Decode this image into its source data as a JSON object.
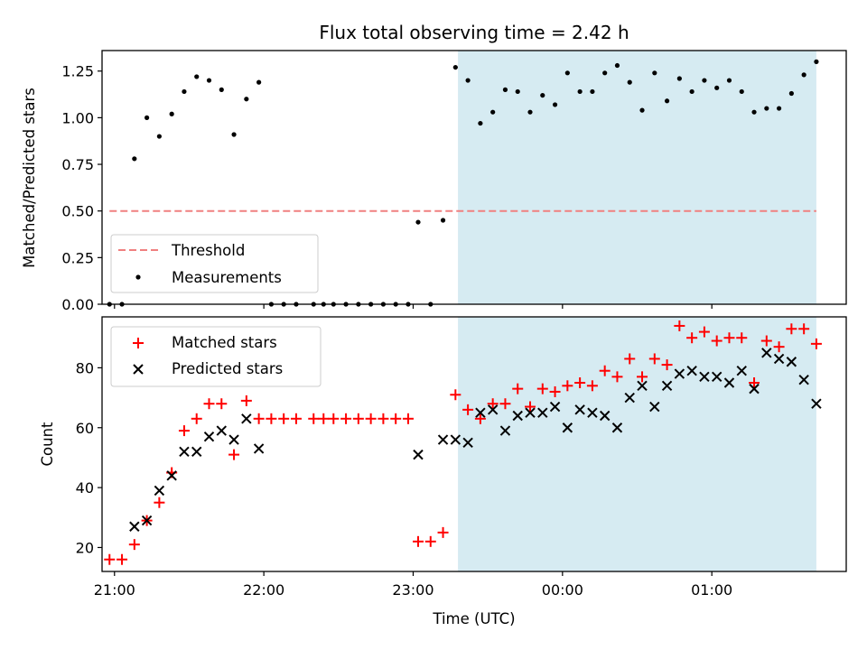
{
  "chart_data": [
    {
      "type": "scatter",
      "title": "Flux total observing time = 2.42 h",
      "xlabel": "",
      "ylabel": "Matched/Predicted stars",
      "ylim": [
        0,
        1.36
      ],
      "yticks": [
        "0.00",
        "0.25",
        "0.50",
        "0.75",
        "1.00",
        "1.25"
      ],
      "xlim": [
        "20:55",
        "01:54"
      ],
      "shaded_region": {
        "from": "23:18",
        "to": "01:42",
        "color": "#add8e6"
      },
      "threshold": {
        "name": "Threshold",
        "value": 0.5,
        "from": "20:58",
        "to": "01:42",
        "color": "#f08080"
      },
      "legend": {
        "location": "lower-left",
        "entries": [
          "Threshold",
          "Measurements"
        ]
      },
      "series": [
        {
          "name": "Measurements",
          "marker": "dot",
          "color": "#000000",
          "points": [
            [
              "20:58",
              0.0
            ],
            [
              "21:03",
              0.0
            ],
            [
              "21:08",
              0.78
            ],
            [
              "21:13",
              1.0
            ],
            [
              "21:18",
              0.9
            ],
            [
              "21:23",
              1.02
            ],
            [
              "21:28",
              1.14
            ],
            [
              "21:33",
              1.22
            ],
            [
              "21:38",
              1.2
            ],
            [
              "21:43",
              1.15
            ],
            [
              "21:48",
              0.91
            ],
            [
              "21:53",
              1.1
            ],
            [
              "21:58",
              1.19
            ],
            [
              "22:03",
              0.0
            ],
            [
              "22:08",
              0.0
            ],
            [
              "22:13",
              0.0
            ],
            [
              "22:20",
              0.0
            ],
            [
              "22:24",
              0.0
            ],
            [
              "22:28",
              0.0
            ],
            [
              "22:33",
              0.0
            ],
            [
              "22:38",
              0.0
            ],
            [
              "22:43",
              0.0
            ],
            [
              "22:48",
              0.0
            ],
            [
              "22:53",
              0.0
            ],
            [
              "22:58",
              0.0
            ],
            [
              "23:02",
              0.44
            ],
            [
              "23:07",
              0.0
            ],
            [
              "23:12",
              0.45
            ],
            [
              "23:17",
              1.27
            ],
            [
              "23:22",
              1.2
            ],
            [
              "23:27",
              0.97
            ],
            [
              "23:32",
              1.03
            ],
            [
              "23:37",
              1.15
            ],
            [
              "23:42",
              1.14
            ],
            [
              "23:47",
              1.03
            ],
            [
              "23:52",
              1.12
            ],
            [
              "23:57",
              1.07
            ],
            [
              "00:02",
              1.24
            ],
            [
              "00:07",
              1.14
            ],
            [
              "00:12",
              1.14
            ],
            [
              "00:17",
              1.24
            ],
            [
              "00:22",
              1.28
            ],
            [
              "00:27",
              1.19
            ],
            [
              "00:32",
              1.04
            ],
            [
              "00:37",
              1.24
            ],
            [
              "00:42",
              1.09
            ],
            [
              "00:47",
              1.21
            ],
            [
              "00:52",
              1.14
            ],
            [
              "00:57",
              1.2
            ],
            [
              "01:02",
              1.16
            ],
            [
              "01:07",
              1.2
            ],
            [
              "01:12",
              1.14
            ],
            [
              "01:17",
              1.03
            ],
            [
              "01:22",
              1.05
            ],
            [
              "01:27",
              1.05
            ],
            [
              "01:32",
              1.13
            ],
            [
              "01:37",
              1.23
            ],
            [
              "01:42",
              1.3
            ]
          ]
        }
      ]
    },
    {
      "type": "scatter",
      "title": "",
      "xlabel": "Time (UTC)",
      "ylabel": "Count",
      "ylim": [
        12,
        97
      ],
      "yticks": [
        "20",
        "40",
        "60",
        "80"
      ],
      "xlim": [
        "20:55",
        "01:54"
      ],
      "xticks": [
        "21:00",
        "22:00",
        "23:00",
        "00:00",
        "01:00"
      ],
      "shaded_region": {
        "from": "23:18",
        "to": "01:42",
        "color": "#add8e6"
      },
      "legend": {
        "location": "upper-left",
        "entries": [
          "Matched stars",
          "Predicted stars"
        ]
      },
      "series": [
        {
          "name": "Matched stars",
          "marker": "plus",
          "color": "#ff0000",
          "points": [
            [
              "20:58",
              16
            ],
            [
              "21:03",
              16
            ],
            [
              "21:08",
              21
            ],
            [
              "21:13",
              29
            ],
            [
              "21:18",
              35
            ],
            [
              "21:23",
              45
            ],
            [
              "21:28",
              59
            ],
            [
              "21:33",
              63
            ],
            [
              "21:38",
              68
            ],
            [
              "21:43",
              68
            ],
            [
              "21:48",
              51
            ],
            [
              "21:53",
              69
            ],
            [
              "21:58",
              63
            ],
            [
              "22:03",
              63
            ],
            [
              "22:08",
              63
            ],
            [
              "22:13",
              63
            ],
            [
              "22:20",
              63
            ],
            [
              "22:24",
              63
            ],
            [
              "22:28",
              63
            ],
            [
              "22:33",
              63
            ],
            [
              "22:38",
              63
            ],
            [
              "22:43",
              63
            ],
            [
              "22:48",
              63
            ],
            [
              "22:53",
              63
            ],
            [
              "22:58",
              63
            ],
            [
              "23:02",
              22
            ],
            [
              "23:07",
              22
            ],
            [
              "23:12",
              25
            ],
            [
              "23:17",
              71
            ],
            [
              "23:22",
              66
            ],
            [
              "23:27",
              63
            ],
            [
              "23:32",
              68
            ],
            [
              "23:37",
              68
            ],
            [
              "23:42",
              73
            ],
            [
              "23:47",
              67
            ],
            [
              "23:52",
              73
            ],
            [
              "23:57",
              72
            ],
            [
              "00:02",
              74
            ],
            [
              "00:07",
              75
            ],
            [
              "00:12",
              74
            ],
            [
              "00:17",
              79
            ],
            [
              "00:22",
              77
            ],
            [
              "00:27",
              83
            ],
            [
              "00:32",
              77
            ],
            [
              "00:37",
              83
            ],
            [
              "00:42",
              81
            ],
            [
              "00:47",
              94
            ],
            [
              "00:52",
              90
            ],
            [
              "00:57",
              92
            ],
            [
              "01:02",
              89
            ],
            [
              "01:07",
              90
            ],
            [
              "01:12",
              90
            ],
            [
              "01:17",
              75
            ],
            [
              "01:22",
              89
            ],
            [
              "01:27",
              87
            ],
            [
              "01:32",
              93
            ],
            [
              "01:37",
              93
            ],
            [
              "01:42",
              88
            ]
          ]
        },
        {
          "name": "Predicted stars",
          "marker": "x",
          "color": "#000000",
          "points": [
            [
              "21:08",
              27
            ],
            [
              "21:13",
              29
            ],
            [
              "21:18",
              39
            ],
            [
              "21:23",
              44
            ],
            [
              "21:28",
              52
            ],
            [
              "21:33",
              52
            ],
            [
              "21:38",
              57
            ],
            [
              "21:43",
              59
            ],
            [
              "21:48",
              56
            ],
            [
              "21:53",
              63
            ],
            [
              "21:58",
              53
            ],
            [
              "23:02",
              51
            ],
            [
              "23:12",
              56
            ],
            [
              "23:17",
              56
            ],
            [
              "23:22",
              55
            ],
            [
              "23:27",
              65
            ],
            [
              "23:32",
              66
            ],
            [
              "23:37",
              59
            ],
            [
              "23:42",
              64
            ],
            [
              "23:47",
              65
            ],
            [
              "23:52",
              65
            ],
            [
              "23:57",
              67
            ],
            [
              "00:02",
              60
            ],
            [
              "00:07",
              66
            ],
            [
              "00:12",
              65
            ],
            [
              "00:17",
              64
            ],
            [
              "00:22",
              60
            ],
            [
              "00:27",
              70
            ],
            [
              "00:32",
              74
            ],
            [
              "00:37",
              67
            ],
            [
              "00:42",
              74
            ],
            [
              "00:47",
              78
            ],
            [
              "00:52",
              79
            ],
            [
              "00:57",
              77
            ],
            [
              "01:02",
              77
            ],
            [
              "01:07",
              75
            ],
            [
              "01:12",
              79
            ],
            [
              "01:17",
              73
            ],
            [
              "01:22",
              85
            ],
            [
              "01:27",
              83
            ],
            [
              "01:32",
              82
            ],
            [
              "01:37",
              76
            ],
            [
              "01:42",
              68
            ]
          ]
        }
      ]
    }
  ]
}
